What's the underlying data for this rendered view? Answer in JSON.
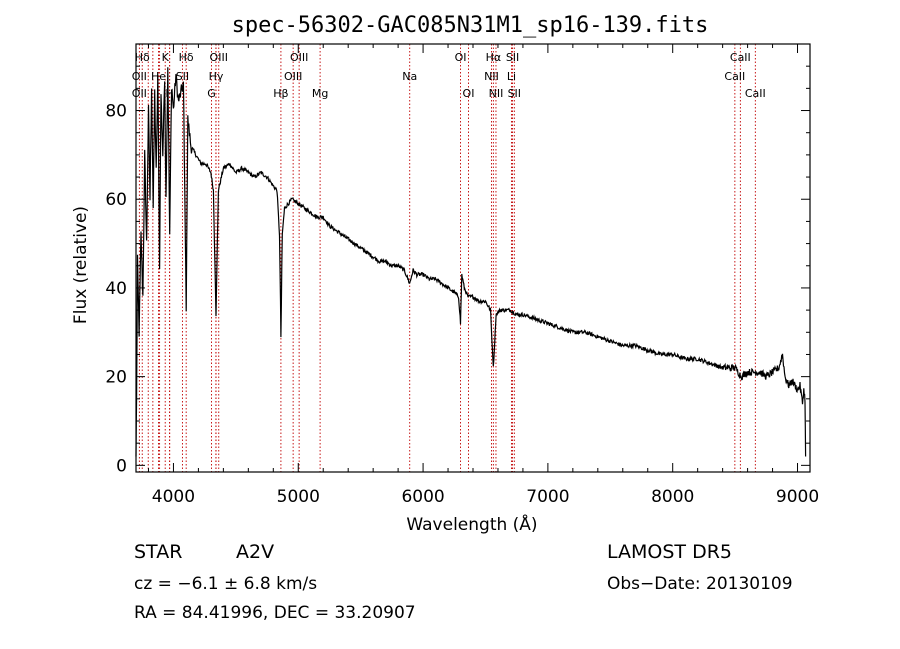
{
  "chart_data": {
    "type": "line",
    "title": "spec-56302-GAC085N31M1_sp16-139.fits",
    "xlabel": "Wavelength (Å)",
    "ylabel": "Flux (relative)",
    "xlim": [
      3700,
      9100
    ],
    "ylim": [
      -1.5,
      95
    ],
    "xticks": [
      "4000",
      "5000",
      "6000",
      "7000",
      "8000",
      "9000"
    ],
    "yticks": [
      "0",
      "20",
      "40",
      "60",
      "80"
    ],
    "grid": false,
    "line_color": "#000000",
    "marker_color": "#c00000",
    "lines": [
      {
        "label": "Hδ",
        "wave": 3750,
        "row": 0
      },
      {
        "label": "OII",
        "wave": 3727,
        "row": 1
      },
      {
        "label": "OII",
        "wave": 3727,
        "row": 2
      },
      {
        "label": "K",
        "wave": 3934,
        "row": 0
      },
      {
        "label": "He",
        "wave": 3880,
        "row": 1
      },
      {
        "label": "H",
        "wave": 3969,
        "row": 2
      },
      {
        "label": "Hδ",
        "wave": 4102,
        "row": 0
      },
      {
        "label": "SII",
        "wave": 4072,
        "row": 1
      },
      {
        "label": "OIII",
        "wave": 4363,
        "row": 0
      },
      {
        "label": "Hγ",
        "wave": 4341,
        "row": 1
      },
      {
        "label": "G",
        "wave": 4305,
        "row": 2
      },
      {
        "label": "Hβ",
        "wave": 4861,
        "row": 2
      },
      {
        "label": "OIII",
        "wave": 5007,
        "row": 0
      },
      {
        "label": "OIII",
        "wave": 4959,
        "row": 1
      },
      {
        "label": "Mg",
        "wave": 5175,
        "row": 2
      },
      {
        "label": "Na",
        "wave": 5893,
        "row": 1
      },
      {
        "label": "OI",
        "wave": 6300,
        "row": 0
      },
      {
        "label": "OI",
        "wave": 6364,
        "row": 2
      },
      {
        "label": "Hα",
        "wave": 6563,
        "row": 0
      },
      {
        "label": "SII",
        "wave": 6717,
        "row": 0
      },
      {
        "label": "NII",
        "wave": 6548,
        "row": 1
      },
      {
        "label": "Li",
        "wave": 6708,
        "row": 1
      },
      {
        "label": "NII",
        "wave": 6584,
        "row": 2
      },
      {
        "label": "SII",
        "wave": 6731,
        "row": 2
      },
      {
        "label": "CaII",
        "wave": 8542,
        "row": 0
      },
      {
        "label": "CaII",
        "wave": 8498,
        "row": 1
      },
      {
        "label": "CaII",
        "wave": 8662,
        "row": 2
      }
    ],
    "extra_markers": [
      3798,
      3835,
      3889,
      3970,
      4340,
      6563
    ],
    "continuum": [
      [
        3700,
        2
      ],
      [
        3705,
        16
      ],
      [
        3712,
        46
      ],
      [
        3725,
        30
      ],
      [
        3740,
        52
      ],
      [
        3755,
        38
      ],
      [
        3770,
        70
      ],
      [
        3785,
        50
      ],
      [
        3800,
        80
      ],
      [
        3812,
        60
      ],
      [
        3825,
        86
      ],
      [
        3838,
        58
      ],
      [
        3850,
        84
      ],
      [
        3862,
        66
      ],
      [
        3875,
        88
      ],
      [
        3889,
        44
      ],
      [
        3900,
        84
      ],
      [
        3915,
        70
      ],
      [
        3930,
        88
      ],
      [
        3940,
        60
      ],
      [
        3955,
        90
      ],
      [
        3970,
        52
      ],
      [
        3985,
        86
      ],
      [
        4000,
        80
      ],
      [
        4020,
        88
      ],
      [
        4040,
        82
      ],
      [
        4060,
        84
      ],
      [
        4080,
        86
      ],
      [
        4102,
        36
      ],
      [
        4115,
        78
      ],
      [
        4140,
        72
      ],
      [
        4180,
        70
      ],
      [
        4220,
        68
      ],
      [
        4260,
        68
      ],
      [
        4300,
        66
      ],
      [
        4320,
        62
      ],
      [
        4341,
        34
      ],
      [
        4360,
        62
      ],
      [
        4400,
        67
      ],
      [
        4450,
        68
      ],
      [
        4500,
        66
      ],
      [
        4550,
        67
      ],
      [
        4600,
        66
      ],
      [
        4650,
        65
      ],
      [
        4700,
        66
      ],
      [
        4750,
        65
      ],
      [
        4800,
        63
      ],
      [
        4830,
        62
      ],
      [
        4850,
        52
      ],
      [
        4861,
        29
      ],
      [
        4872,
        52
      ],
      [
        4890,
        58
      ],
      [
        4920,
        59
      ],
      [
        4950,
        60
      ],
      [
        5000,
        59
      ],
      [
        5050,
        58
      ],
      [
        5100,
        57
      ],
      [
        5150,
        56
      ],
      [
        5200,
        56
      ],
      [
        5250,
        54
      ],
      [
        5300,
        53
      ],
      [
        5350,
        52
      ],
      [
        5400,
        51
      ],
      [
        5450,
        50
      ],
      [
        5500,
        49
      ],
      [
        5550,
        48
      ],
      [
        5600,
        47
      ],
      [
        5650,
        46
      ],
      [
        5700,
        46
      ],
      [
        5750,
        45
      ],
      [
        5800,
        45
      ],
      [
        5850,
        44
      ],
      [
        5893,
        41
      ],
      [
        5920,
        44
      ],
      [
        5950,
        43
      ],
      [
        6000,
        43
      ],
      [
        6050,
        42
      ],
      [
        6100,
        42
      ],
      [
        6150,
        41
      ],
      [
        6200,
        40
      ],
      [
        6250,
        39
      ],
      [
        6285,
        38
      ],
      [
        6300,
        32
      ],
      [
        6310,
        43
      ],
      [
        6330,
        40
      ],
      [
        6360,
        38
      ],
      [
        6400,
        38
      ],
      [
        6450,
        37
      ],
      [
        6500,
        37
      ],
      [
        6540,
        35
      ],
      [
        6563,
        22
      ],
      [
        6585,
        34
      ],
      [
        6620,
        35
      ],
      [
        6660,
        35
      ],
      [
        6700,
        35
      ],
      [
        6750,
        34
      ],
      [
        6800,
        34
      ],
      [
        6900,
        33
      ],
      [
        7000,
        32
      ],
      [
        7100,
        31
      ],
      [
        7200,
        30
      ],
      [
        7300,
        30
      ],
      [
        7400,
        29
      ],
      [
        7500,
        28
      ],
      [
        7600,
        27
      ],
      [
        7700,
        27
      ],
      [
        7800,
        26
      ],
      [
        7900,
        25
      ],
      [
        8000,
        25
      ],
      [
        8100,
        24
      ],
      [
        8200,
        24
      ],
      [
        8300,
        23
      ],
      [
        8400,
        22
      ],
      [
        8500,
        22
      ],
      [
        8550,
        20
      ],
      [
        8600,
        21
      ],
      [
        8650,
        21
      ],
      [
        8700,
        21
      ],
      [
        8750,
        20
      ],
      [
        8800,
        21
      ],
      [
        8850,
        22
      ],
      [
        8880,
        25
      ],
      [
        8900,
        20
      ],
      [
        8930,
        18
      ],
      [
        8960,
        19
      ],
      [
        9000,
        17
      ],
      [
        9020,
        18
      ],
      [
        9040,
        14
      ],
      [
        9050,
        17
      ],
      [
        9060,
        15
      ],
      [
        9065,
        2
      ]
    ]
  },
  "info": {
    "object_type": "STAR",
    "subclass": "A2V",
    "survey": "LAMOST  DR5",
    "cz": "cz = −6.1 ± 6.8 km/s",
    "obs_date": "Obs−Date: 20130109",
    "coords": "RA =  84.41996, DEC =  33.20907"
  }
}
